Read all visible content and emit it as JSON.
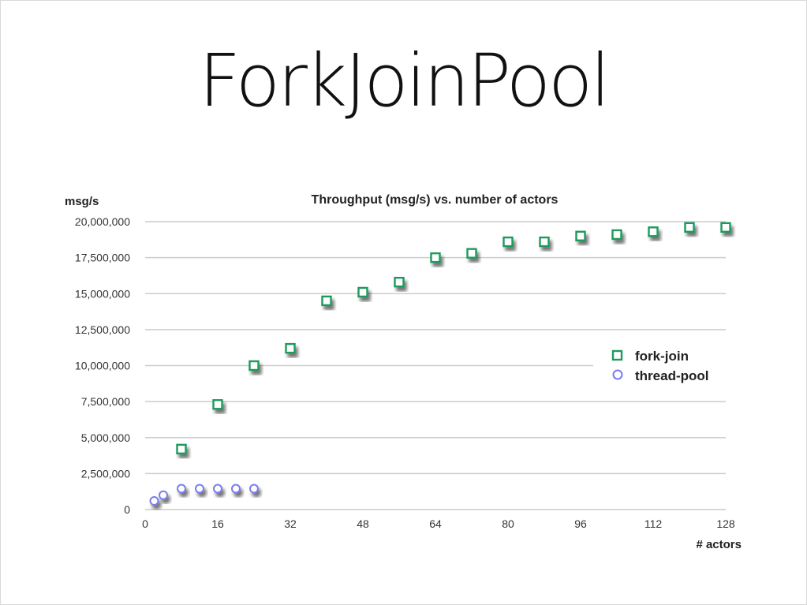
{
  "slide": {
    "title": "ForkJoinPool"
  },
  "colors": {
    "fork_join": "#1f9a5c",
    "thread_pool": "#7b7bf0",
    "grid": "#cccccc"
  },
  "chart_data": {
    "type": "scatter",
    "title": "Throughput (msg/s) vs. number of actors",
    "xlabel": "# actors",
    "ylabel": "msg/s",
    "xlim": [
      0,
      128
    ],
    "ylim": [
      0,
      20000000
    ],
    "xticks": [
      0,
      16,
      32,
      48,
      64,
      80,
      96,
      112,
      128
    ],
    "yticks": [
      0,
      2500000,
      5000000,
      7500000,
      10000000,
      12500000,
      15000000,
      17500000,
      20000000
    ],
    "xtick_labels": [
      "0",
      "16",
      "32",
      "48",
      "64",
      "80",
      "96",
      "112",
      "128"
    ],
    "ytick_labels": [
      "0",
      "2,500,000",
      "5,000,000",
      "7,500,000",
      "10,000,000",
      "12,500,000",
      "15,000,000",
      "17,500,000",
      "20,000,000"
    ],
    "grid": true,
    "legend_position": "right",
    "series": [
      {
        "name": "fork-join",
        "marker": "square",
        "color": "#1f9a5c",
        "x": [
          8,
          16,
          24,
          32,
          40,
          48,
          56,
          64,
          72,
          80,
          88,
          96,
          104,
          112,
          120,
          128
        ],
        "y": [
          4200000,
          7300000,
          10000000,
          11200000,
          14500000,
          15100000,
          15800000,
          17500000,
          17800000,
          18600000,
          18600000,
          19000000,
          19100000,
          19300000,
          19600000,
          19600000
        ]
      },
      {
        "name": "thread-pool",
        "marker": "circle",
        "color": "#7b7bf0",
        "x": [
          2,
          4,
          8,
          12,
          16,
          20,
          24
        ],
        "y": [
          600000,
          1000000,
          1450000,
          1450000,
          1450000,
          1450000,
          1450000
        ]
      }
    ]
  }
}
